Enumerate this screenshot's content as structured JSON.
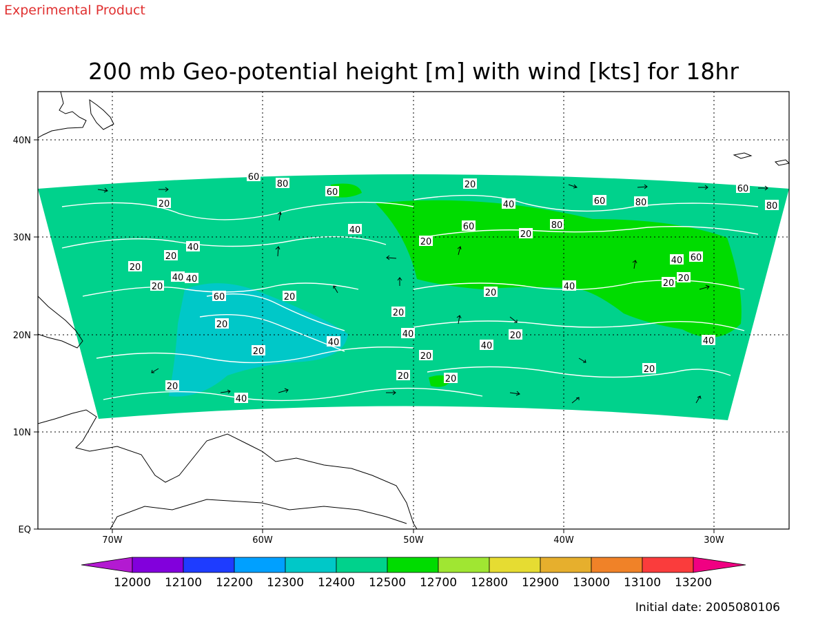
{
  "header": {
    "product_label": "Experimental Product",
    "title": "200 mb Geo-potential height [m] with wind [kts] for 18hr"
  },
  "map": {
    "lat_labels": [
      "40N",
      "30N",
      "20N",
      "10N",
      "EQ"
    ],
    "lon_labels": [
      "70W",
      "60W",
      "50W",
      "40W",
      "30W"
    ],
    "contour_labels": [
      "60",
      "80",
      "60",
      "20",
      "40",
      "60",
      "80",
      "80",
      "60",
      "20",
      "40",
      "60",
      "80",
      "20",
      "20",
      "20",
      "40",
      "20",
      "20",
      "40",
      "40",
      "60",
      "40",
      "60",
      "20",
      "20",
      "40",
      "20",
      "20",
      "20",
      "20",
      "40",
      "20",
      "40",
      "20",
      "40",
      "20",
      "40",
      "20",
      "20",
      "20",
      "40",
      "20"
    ]
  },
  "colorbar": {
    "tick_labels": [
      "12000",
      "12100",
      "12200",
      "12300",
      "12400",
      "12500",
      "12700",
      "12800",
      "12900",
      "13000",
      "13100",
      "13200"
    ],
    "colors": [
      "#b31ad1",
      "#8200dc",
      "#1e3cff",
      "#00a0ff",
      "#00c8c8",
      "#00d28c",
      "#00dc00",
      "#a0e632",
      "#e6dc32",
      "#e6af2d",
      "#f08228",
      "#fa3c3c",
      "#f00082"
    ]
  },
  "footer": {
    "initial_date": "Initial date: 2005080106"
  }
}
